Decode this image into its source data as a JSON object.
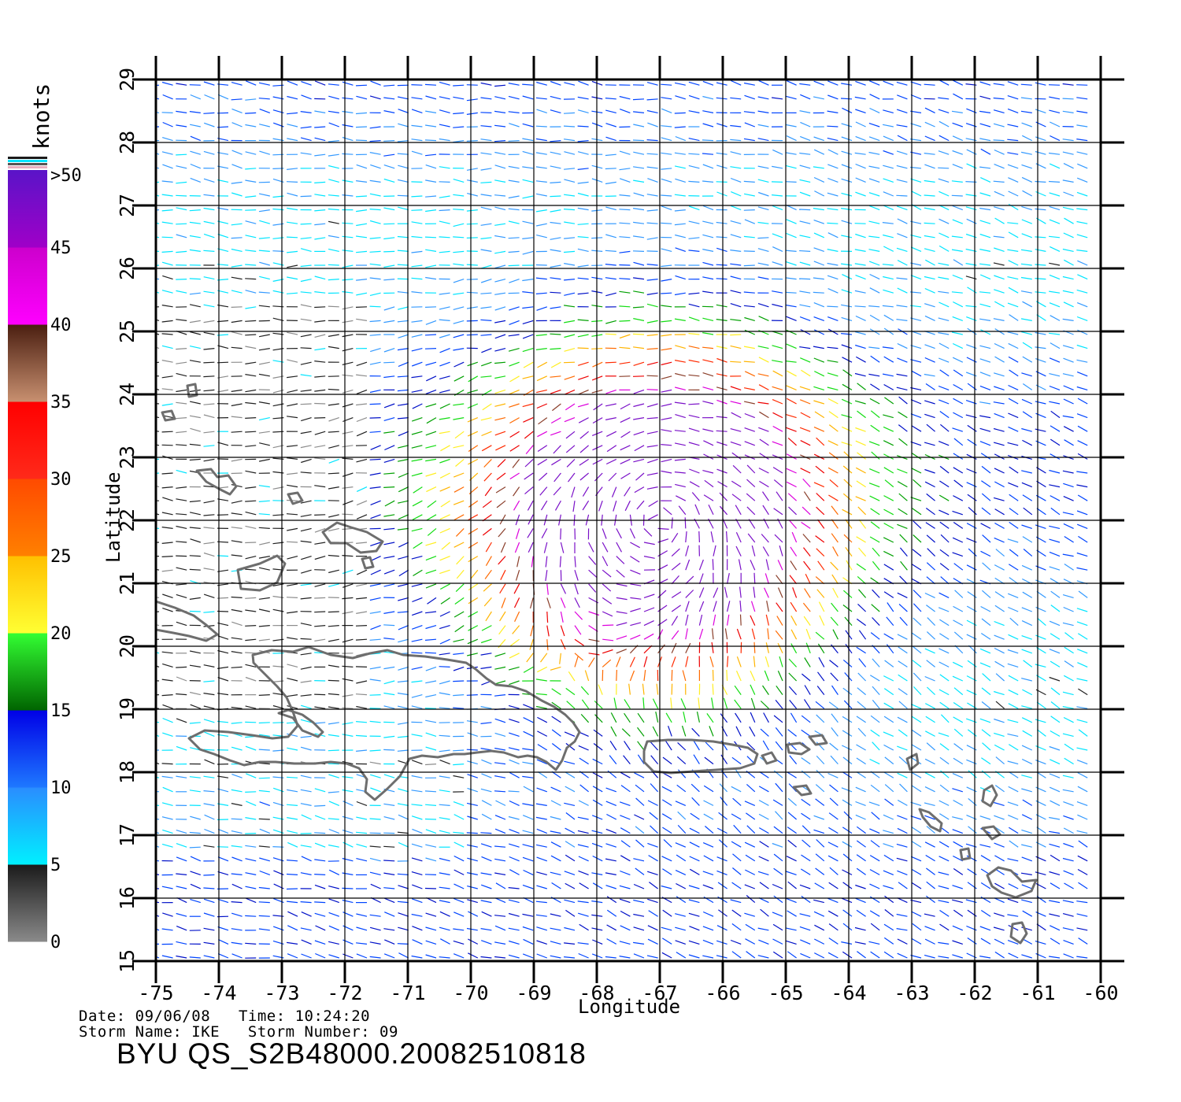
{
  "axes": {
    "x_label": "Longitude",
    "y_label": "Latitude",
    "x_ticks": [
      "-75",
      "-74",
      "-73",
      "-72",
      "-71",
      "-70",
      "-69",
      "-68",
      "-67",
      "-66",
      "-65",
      "-64",
      "-63",
      "-62",
      "-61",
      "-60"
    ],
    "y_ticks": [
      "15",
      "16",
      "17",
      "18",
      "19",
      "20",
      "21",
      "22",
      "23",
      "24",
      "25",
      "26",
      "27",
      "28",
      "29"
    ],
    "x_range": [
      -75,
      -60
    ],
    "y_range": [
      15,
      29
    ]
  },
  "colorbar": {
    "unit": "knots",
    "labels": [
      "0",
      "5",
      "10",
      "15",
      "20",
      "25",
      "30",
      "35",
      "40",
      "45",
      ">50"
    ],
    "segments": [
      {
        "from": 0,
        "to": 5,
        "colors": [
          "#8a8a8a",
          "#1a1a1a"
        ]
      },
      {
        "from": 5,
        "to": 10,
        "colors": [
          "#00f0ff",
          "#2a8cff"
        ]
      },
      {
        "from": 10,
        "to": 15,
        "colors": [
          "#1e78ff",
          "#0000e6"
        ]
      },
      {
        "from": 15,
        "to": 20,
        "colors": [
          "#006400",
          "#33ff33"
        ]
      },
      {
        "from": 20,
        "to": 25,
        "colors": [
          "#ffff33",
          "#ffc000"
        ]
      },
      {
        "from": 25,
        "to": 30,
        "colors": [
          "#ff8000",
          "#ff4a00"
        ]
      },
      {
        "from": 30,
        "to": 35,
        "colors": [
          "#ff2a1a",
          "#ff0000"
        ]
      },
      {
        "from": 35,
        "to": 40,
        "colors": [
          "#c89070",
          "#4a1e10"
        ]
      },
      {
        "from": 40,
        "to": 45,
        "colors": [
          "#ff00ff",
          "#cc00cc"
        ]
      },
      {
        "from": 45,
        "to": 50,
        "colors": [
          "#a000c8",
          "#5a14c8"
        ]
      }
    ]
  },
  "speed_colors": [
    "#8c8c8c",
    "#202020",
    "#00e5ff",
    "#3399ff",
    "#0044ff",
    "#0010c8",
    "#00a000",
    "#11dd11",
    "#ffee22",
    "#ffb400",
    "#ff6a00",
    "#ff2a00",
    "#ee0000",
    "#8a3e2a",
    "#dd00dd",
    "#7a10c8"
  ],
  "footer": {
    "date_line": "Date: 09/06/08   Time: 10:24:20",
    "storm_line": "Storm Name: IKE   Storm Number: 09",
    "title": "BYU  QS_S2B48000.20082510818"
  },
  "chart_data": {
    "type": "map",
    "title": "BYU  QS_S2B48000.20082510818",
    "xlabel": "Longitude",
    "ylabel": "Latitude",
    "xlim": [
      -75,
      -60
    ],
    "ylim": [
      15,
      29
    ],
    "grid": true,
    "legend": "colorbar left, wind speed in knots, 0 to >50",
    "storm": {
      "name": "IKE",
      "number": "09",
      "center_lon": -67.0,
      "center_lat": 22.0
    },
    "date": "09/06/08",
    "time": "10:24:20"
  }
}
